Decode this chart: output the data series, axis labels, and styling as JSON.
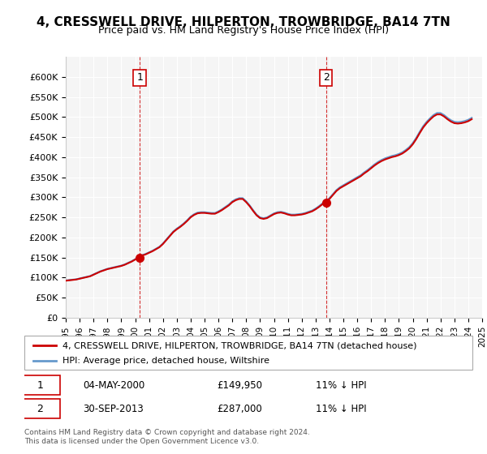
{
  "title": "4, CRESSWELL DRIVE, HILPERTON, TROWBRIDGE, BA14 7TN",
  "subtitle": "Price paid vs. HM Land Registry's House Price Index (HPI)",
  "property_label": "4, CRESSWELL DRIVE, HILPERTON, TROWBRIDGE, BA14 7TN (detached house)",
  "hpi_label": "HPI: Average price, detached house, Wiltshire",
  "transaction1_label": "1",
  "transaction1_date": "04-MAY-2000",
  "transaction1_price": "£149,950",
  "transaction1_hpi": "11% ↓ HPI",
  "transaction2_label": "2",
  "transaction2_date": "30-SEP-2013",
  "transaction2_price": "£287,000",
  "transaction2_hpi": "11% ↓ HPI",
  "footer": "Contains HM Land Registry data © Crown copyright and database right 2024.\nThis data is licensed under the Open Government Licence v3.0.",
  "ylim_min": 0,
  "ylim_max": 650000,
  "yticks": [
    0,
    50000,
    100000,
    150000,
    200000,
    250000,
    300000,
    350000,
    400000,
    450000,
    500000,
    550000,
    600000
  ],
  "property_color": "#cc0000",
  "hpi_color": "#6699cc",
  "background_color": "#ffffff",
  "plot_bg_color": "#f5f5f5",
  "grid_color": "#ffffff",
  "transaction_marker_color": "#cc0000",
  "dashed_line_color": "#cc0000",
  "hpi_years": [
    1995,
    1995.25,
    1995.5,
    1995.75,
    1996,
    1996.25,
    1996.5,
    1996.75,
    1997,
    1997.25,
    1997.5,
    1997.75,
    1998,
    1998.25,
    1998.5,
    1998.75,
    1999,
    1999.25,
    1999.5,
    1999.75,
    2000,
    2000.25,
    2000.5,
    2000.75,
    2001,
    2001.25,
    2001.5,
    2001.75,
    2002,
    2002.25,
    2002.5,
    2002.75,
    2003,
    2003.25,
    2003.5,
    2003.75,
    2004,
    2004.25,
    2004.5,
    2004.75,
    2005,
    2005.25,
    2005.5,
    2005.75,
    2006,
    2006.25,
    2006.5,
    2006.75,
    2007,
    2007.25,
    2007.5,
    2007.75,
    2008,
    2008.25,
    2008.5,
    2008.75,
    2009,
    2009.25,
    2009.5,
    2009.75,
    2010,
    2010.25,
    2010.5,
    2010.75,
    2011,
    2011.25,
    2011.5,
    2011.75,
    2012,
    2012.25,
    2012.5,
    2012.75,
    2013,
    2013.25,
    2013.5,
    2013.75,
    2014,
    2014.25,
    2014.5,
    2014.75,
    2015,
    2015.25,
    2015.5,
    2015.75,
    2016,
    2016.25,
    2016.5,
    2016.75,
    2017,
    2017.25,
    2017.5,
    2017.75,
    2018,
    2018.25,
    2018.5,
    2018.75,
    2019,
    2019.25,
    2019.5,
    2019.75,
    2020,
    2020.25,
    2020.5,
    2020.75,
    2021,
    2021.25,
    2021.5,
    2021.75,
    2022,
    2022.25,
    2022.5,
    2022.75,
    2023,
    2023.25,
    2023.5,
    2023.75,
    2024,
    2024.25
  ],
  "hpi_values": [
    93000,
    94000,
    95000,
    96000,
    98000,
    100000,
    102000,
    104000,
    108000,
    112000,
    116000,
    119000,
    122000,
    124000,
    126000,
    128000,
    130000,
    133000,
    137000,
    141000,
    146000,
    151000,
    156000,
    159000,
    163000,
    167000,
    172000,
    177000,
    185000,
    195000,
    205000,
    215000,
    222000,
    228000,
    235000,
    243000,
    252000,
    258000,
    262000,
    263000,
    263000,
    262000,
    261000,
    261000,
    265000,
    270000,
    276000,
    282000,
    290000,
    295000,
    298000,
    298000,
    290000,
    280000,
    268000,
    257000,
    250000,
    248000,
    250000,
    255000,
    260000,
    263000,
    264000,
    262000,
    259000,
    257000,
    257000,
    258000,
    259000,
    261000,
    264000,
    267000,
    272000,
    278000,
    285000,
    291000,
    298000,
    308000,
    318000,
    325000,
    330000,
    335000,
    340000,
    345000,
    350000,
    355000,
    362000,
    368000,
    375000,
    382000,
    388000,
    393000,
    397000,
    400000,
    403000,
    405000,
    408000,
    412000,
    418000,
    425000,
    435000,
    448000,
    463000,
    477000,
    488000,
    497000,
    505000,
    510000,
    510000,
    505000,
    498000,
    492000,
    488000,
    487000,
    488000,
    490000,
    493000,
    498000
  ],
  "property_years": [
    2000.33,
    2013.75
  ],
  "property_values": [
    149950,
    287000
  ],
  "xlim_min": 1995,
  "xlim_max": 2025,
  "xticks": [
    1995,
    1996,
    1997,
    1998,
    1999,
    2000,
    2001,
    2002,
    2003,
    2004,
    2005,
    2006,
    2007,
    2008,
    2009,
    2010,
    2011,
    2012,
    2013,
    2014,
    2015,
    2016,
    2017,
    2018,
    2019,
    2020,
    2021,
    2022,
    2023,
    2024,
    2025
  ],
  "transaction1_x": 2000.33,
  "transaction1_y": 149950,
  "transaction2_x": 2013.75,
  "transaction2_y": 287000,
  "num1_x": 2000.33,
  "num2_x": 2013.75,
  "num_y": 590000
}
